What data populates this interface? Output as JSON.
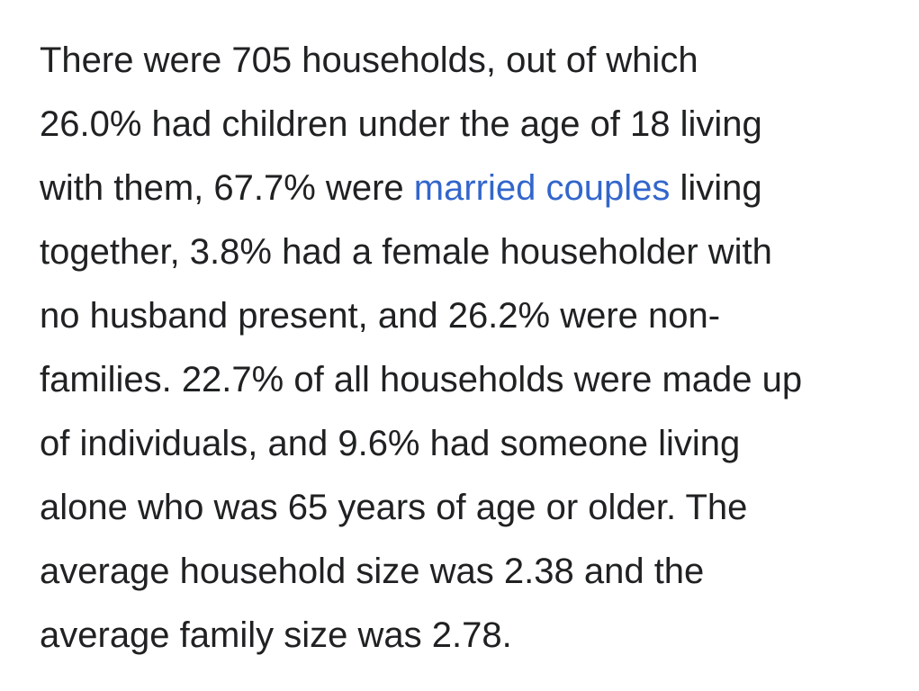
{
  "article": {
    "line1": "There were 705 households, out of which",
    "line2": "26.0% had children under the age of 18 living",
    "line3_before": "with them, 67.7% were ",
    "line3_link": "married couples",
    "line3_after": " living",
    "line4": "together, 3.8% had a female householder with",
    "line5": "no husband present, and 26.2% were non-",
    "line6": "families. 22.7% of all households were made up",
    "line7": "of individuals, and 9.6% had someone living",
    "line8": "alone who was 65 years of age or older. The",
    "line9": "average household size was 2.38 and the",
    "line10": "average family size was 2.78."
  },
  "colors": {
    "text": "#202122",
    "link": "#3366cc",
    "background": "#ffffff"
  }
}
